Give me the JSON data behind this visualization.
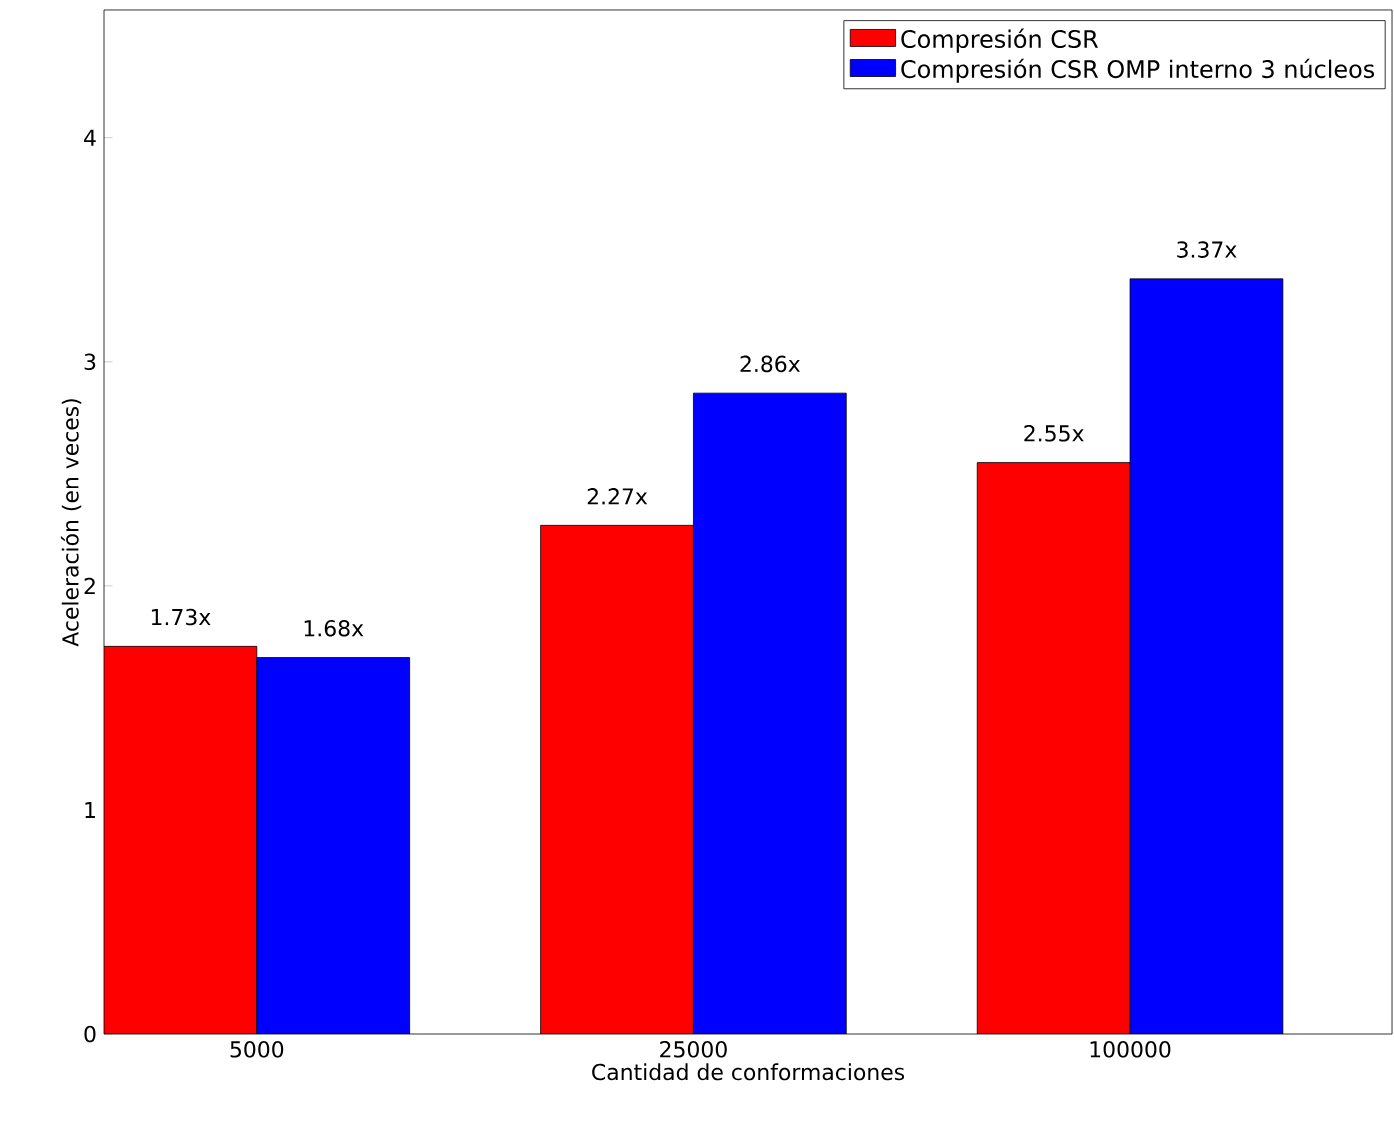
{
  "chart_data": {
    "type": "bar",
    "xlabel": "Cantidad de conformaciones",
    "ylabel": "Aceleración (en veces)",
    "categories": [
      "5000",
      "25000",
      "100000"
    ],
    "series": [
      {
        "name": "Compresión CSR",
        "color": "#ff0000",
        "values": [
          1.73,
          2.27,
          2.55
        ],
        "value_labels": [
          "1.73x",
          "2.27x",
          "2.55x"
        ]
      },
      {
        "name": "Compresión CSR OMP interno 3 núcleos",
        "color": "#0000ff",
        "values": [
          1.68,
          2.86,
          3.37
        ],
        "value_labels": [
          "1.68x",
          "2.86x",
          "3.37x"
        ]
      }
    ],
    "ylim": [
      0,
      4.57
    ],
    "yticks": [
      0,
      1,
      2,
      3,
      4
    ],
    "grid": false,
    "legend": "top right"
  }
}
